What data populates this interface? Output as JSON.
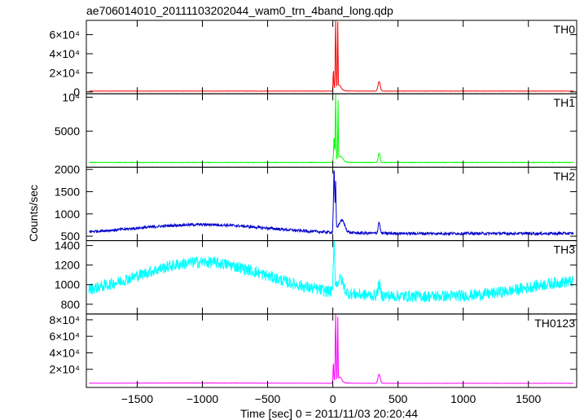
{
  "chart_data": {
    "type": "line",
    "title": "ae706014010_20111103202044_wam0_trn_4band_long.qdp",
    "xlabel": "Time [sec] 0 = 2011/11/03 20:20:44",
    "ylabel": "Counts/sec",
    "xlim": [
      -1890,
      1870
    ],
    "xticks": [
      -1500,
      -1000,
      -500,
      0,
      500,
      1000,
      1500
    ],
    "xtick_labels": [
      "−1500",
      "−1000",
      "−500",
      "0",
      "500",
      "1000",
      "1500"
    ],
    "grid": false,
    "panels": [
      {
        "name": "TH0",
        "color": "#ff0000",
        "ylim": [
          -2000,
          75000
        ],
        "yticks": [
          0,
          20000,
          40000,
          60000
        ],
        "ytick_labels": [
          "0",
          "2×10⁴",
          "4×10⁴",
          "6×10⁴"
        ],
        "baseline": 800,
        "noise": 120,
        "hump": 0,
        "peaks": [
          [
            5,
            20000,
            3
          ],
          [
            22,
            72000,
            4
          ],
          [
            38,
            68000,
            3
          ],
          [
            50,
            5000,
            20
          ],
          [
            355,
            10000,
            12
          ]
        ],
        "decay": 4000
      },
      {
        "name": "TH1",
        "color": "#00ff00",
        "ylim": [
          -300,
          10500
        ],
        "yticks": [
          5000,
          10000
        ],
        "ytick_labels": [
          "5000",
          "10⁴"
        ],
        "baseline": 400,
        "noise": 40,
        "hump": 0,
        "peaks": [
          [
            10,
            3500,
            4
          ],
          [
            22,
            10200,
            4
          ],
          [
            40,
            8800,
            3
          ],
          [
            60,
            800,
            25
          ],
          [
            355,
            1400,
            10
          ]
        ],
        "decay": 500
      },
      {
        "name": "TH2",
        "color": "#0000cc",
        "ylim": [
          400,
          2050
        ],
        "yticks": [
          500,
          1000,
          1500,
          2000
        ],
        "ytick_labels": [
          "500",
          "1000",
          "1500",
          "2000"
        ],
        "baseline": 560,
        "noise": 30,
        "hump": 200,
        "peaks": [
          [
            10,
            1300,
            6
          ],
          [
            22,
            1000,
            4
          ],
          [
            70,
            250,
            30
          ],
          [
            355,
            250,
            10
          ]
        ],
        "decay": 150
      },
      {
        "name": "TH3",
        "color": "#00ffff",
        "ylim": [
          700,
          1450
        ],
        "yticks": [
          800,
          1000,
          1200,
          1400
        ],
        "ytick_labels": [
          "800",
          "1000",
          "1200",
          "1400"
        ],
        "baseline": 880,
        "noise": 60,
        "hump": 350,
        "peaks": [
          [
            10,
            500,
            6
          ],
          [
            60,
            120,
            30
          ],
          [
            355,
            120,
            12
          ]
        ],
        "decay": 90
      },
      {
        "name": "TH0123",
        "color": "#ff00ff",
        "ylim": [
          -2000,
          87000
        ],
        "yticks": [
          20000,
          40000,
          60000,
          80000
        ],
        "ytick_labels": [
          "2×10⁴",
          "4×10⁴",
          "6×10⁴",
          "8×10⁴"
        ],
        "baseline": 3000,
        "noise": 150,
        "hump": 400,
        "peaks": [
          [
            5,
            22000,
            3
          ],
          [
            22,
            83000,
            4
          ],
          [
            38,
            76000,
            3
          ],
          [
            55,
            6000,
            20
          ],
          [
            355,
            11000,
            12
          ]
        ],
        "decay": 5000
      }
    ]
  }
}
